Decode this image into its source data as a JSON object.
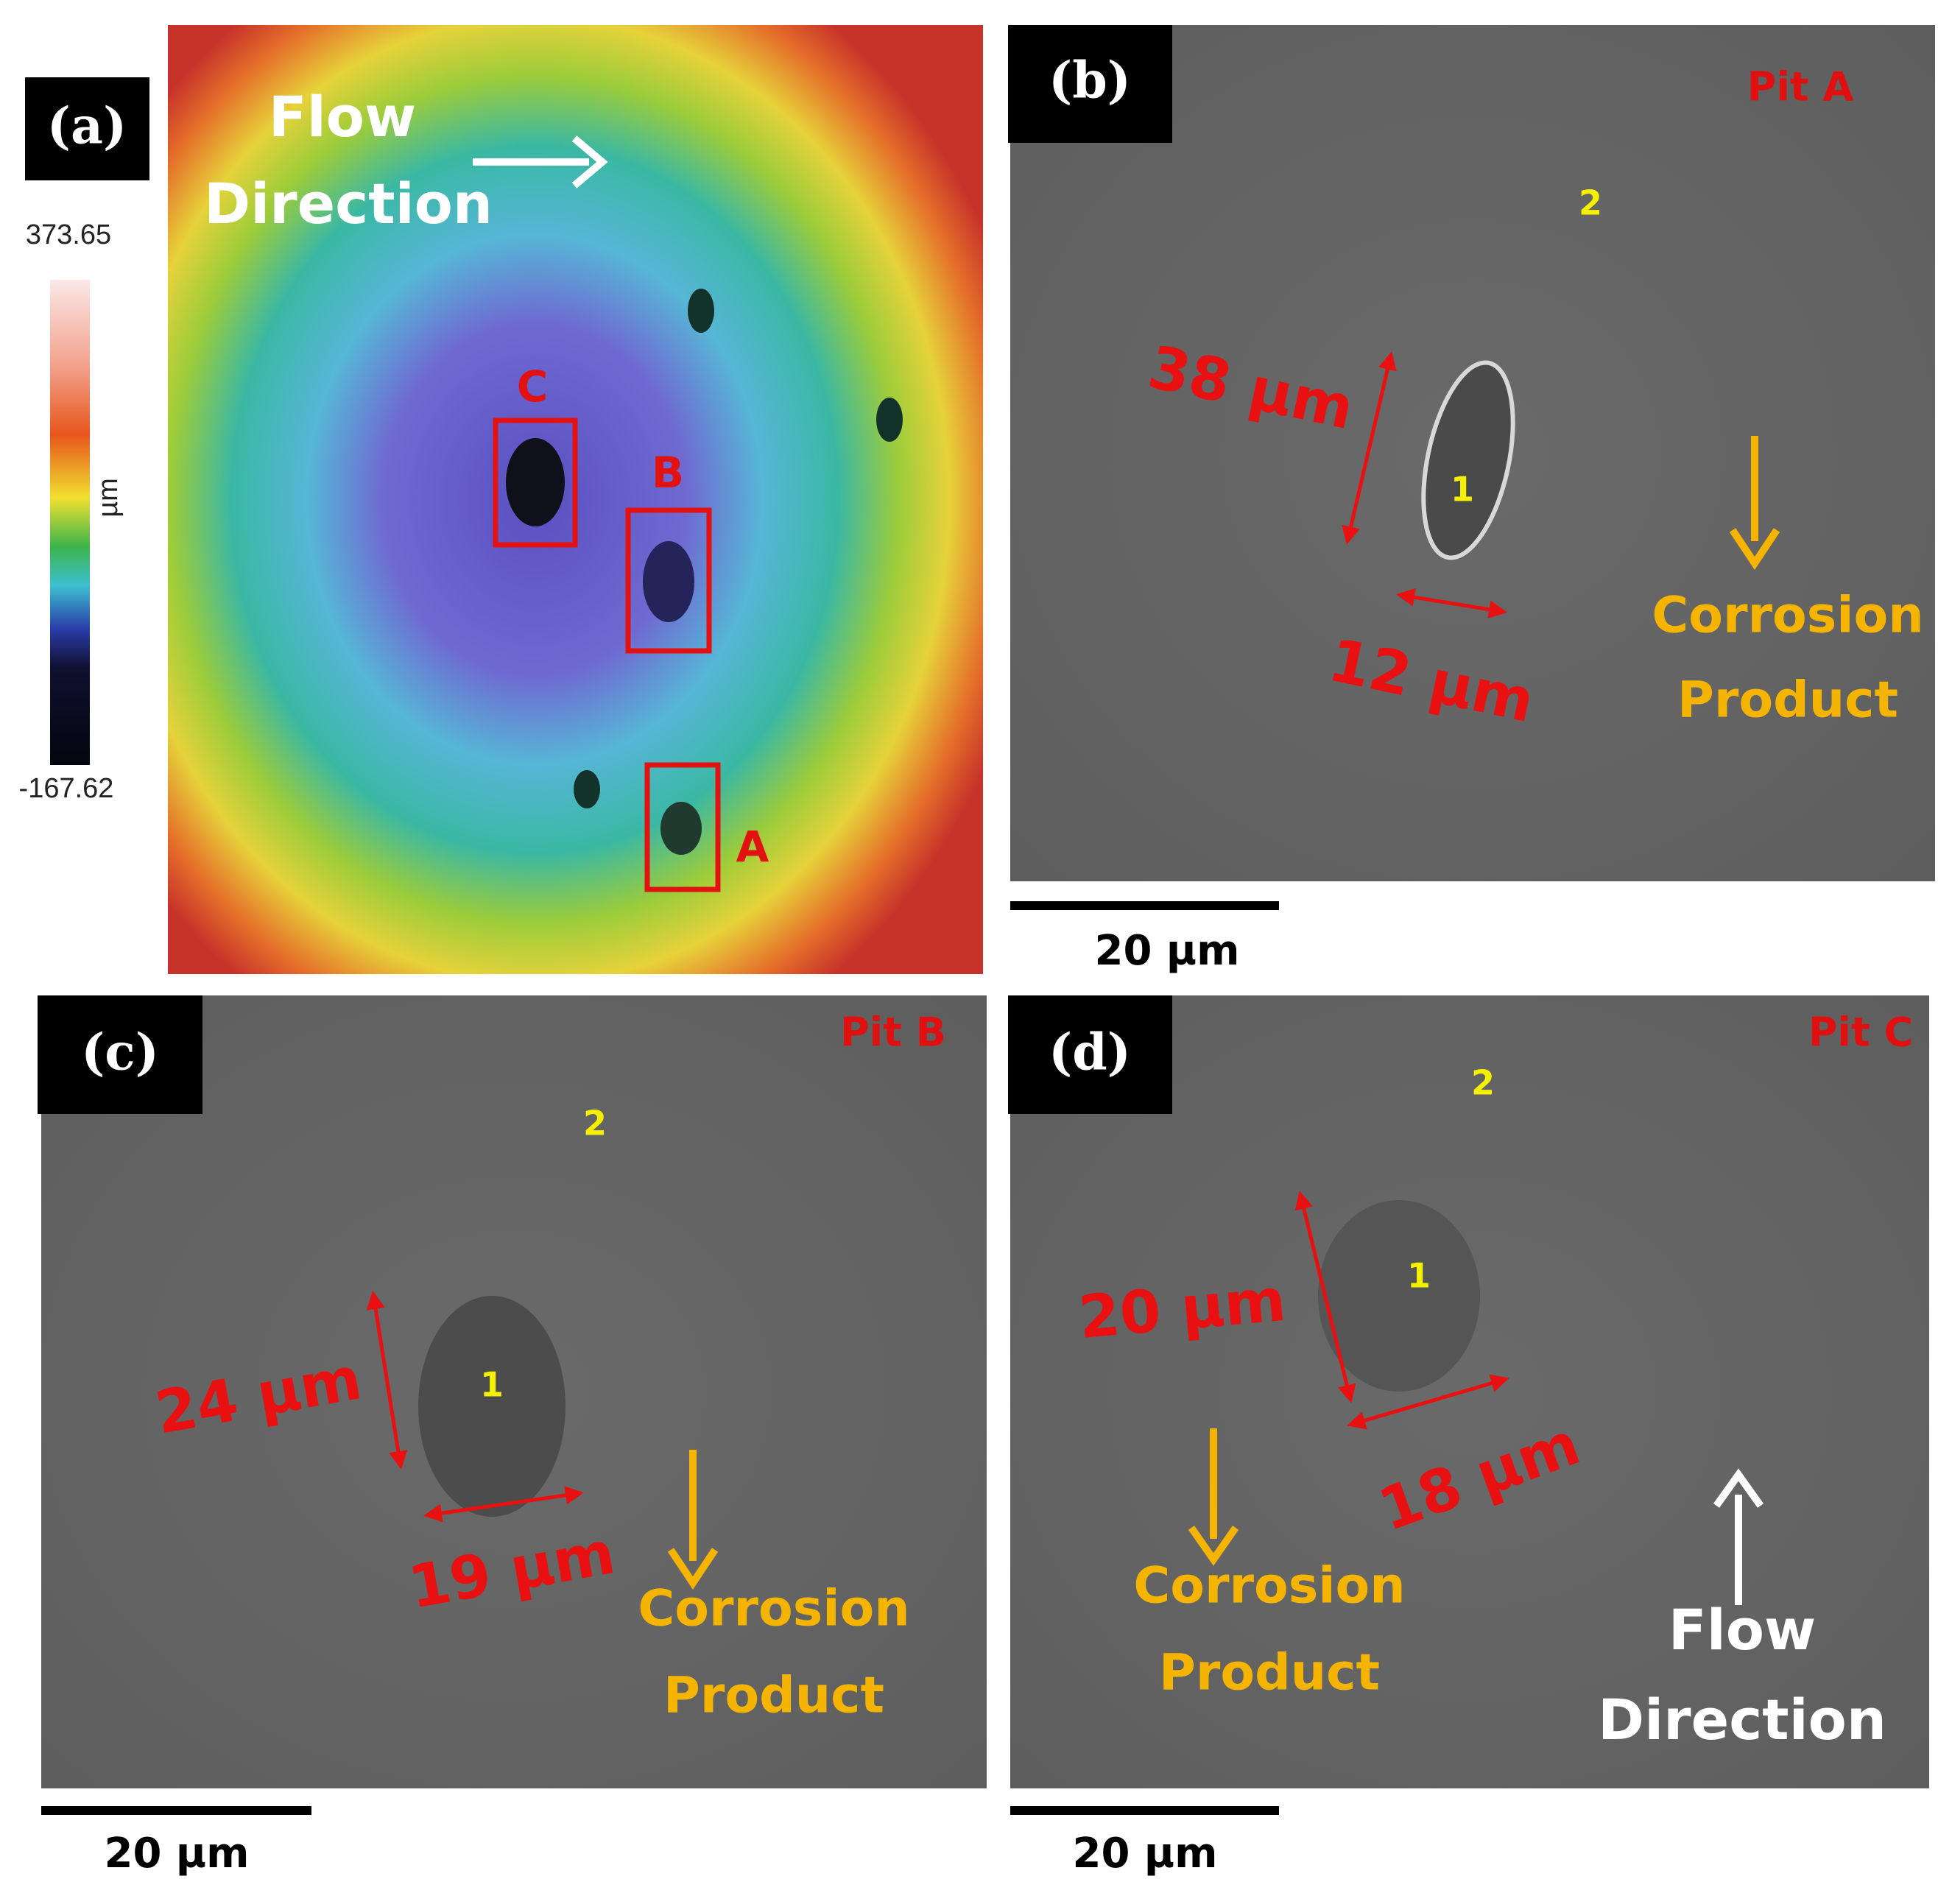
{
  "panels": [
    {
      "label": "(a)",
      "flow_direction": [
        "Flow",
        "Direction"
      ],
      "colorbar": {
        "max": "373.65",
        "min": "-167.62",
        "unit": "µm"
      },
      "boxes": [
        "C",
        "B",
        "A"
      ]
    },
    {
      "label": "(b)",
      "pit": "Pit A",
      "measurements": [
        "38 µm",
        "12 µm"
      ],
      "points": [
        "1",
        "2"
      ],
      "product": [
        "Corrosion",
        "Product"
      ],
      "scale_bar": "20 µm"
    },
    {
      "label": "(c)",
      "pit": "Pit B",
      "measurements": [
        "24 µm",
        "19 µm"
      ],
      "points": [
        "1",
        "2"
      ],
      "product": [
        "Corrosion",
        "Product"
      ],
      "scale_bar": "20 µm"
    },
    {
      "label": "(d)",
      "pit": "Pit C",
      "measurements": [
        "20 µm",
        "18 µm"
      ],
      "points": [
        "1",
        "2"
      ],
      "product": [
        "Corrosion",
        "Product"
      ],
      "flow_direction": [
        "Flow",
        "Direction"
      ],
      "scale_bar": "20 µm"
    }
  ]
}
